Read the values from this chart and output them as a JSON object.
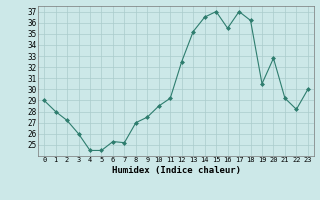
{
  "x": [
    0,
    1,
    2,
    3,
    4,
    5,
    6,
    7,
    8,
    9,
    10,
    11,
    12,
    13,
    14,
    15,
    16,
    17,
    18,
    19,
    20,
    21,
    22,
    23
  ],
  "y": [
    29,
    28,
    27.2,
    26,
    24.5,
    24.5,
    25.3,
    25.2,
    27,
    27.5,
    28.5,
    29.2,
    32.5,
    35.2,
    36.5,
    37,
    35.5,
    37,
    36.2,
    30.5,
    32.8,
    29.2,
    28.2,
    30
  ],
  "line_color": "#2e7d6e",
  "marker": "D",
  "marker_size": 2,
  "bg_color": "#cce8e8",
  "grid_color": "#aacccc",
  "xlabel": "Humidex (Indice chaleur)",
  "ylim": [
    24.0,
    37.5
  ],
  "xlim": [
    -0.5,
    23.5
  ],
  "yticks": [
    25,
    26,
    27,
    28,
    29,
    30,
    31,
    32,
    33,
    34,
    35,
    36,
    37
  ],
  "xticks": [
    0,
    1,
    2,
    3,
    4,
    5,
    6,
    7,
    8,
    9,
    10,
    11,
    12,
    13,
    14,
    15,
    16,
    17,
    18,
    19,
    20,
    21,
    22,
    23
  ],
  "xtick_labels": [
    "0",
    "1",
    "2",
    "3",
    "4",
    "5",
    "6",
    "7",
    "8",
    "9",
    "10",
    "11",
    "12",
    "13",
    "14",
    "15",
    "16",
    "17",
    "18",
    "19",
    "20",
    "21",
    "22",
    "23"
  ]
}
